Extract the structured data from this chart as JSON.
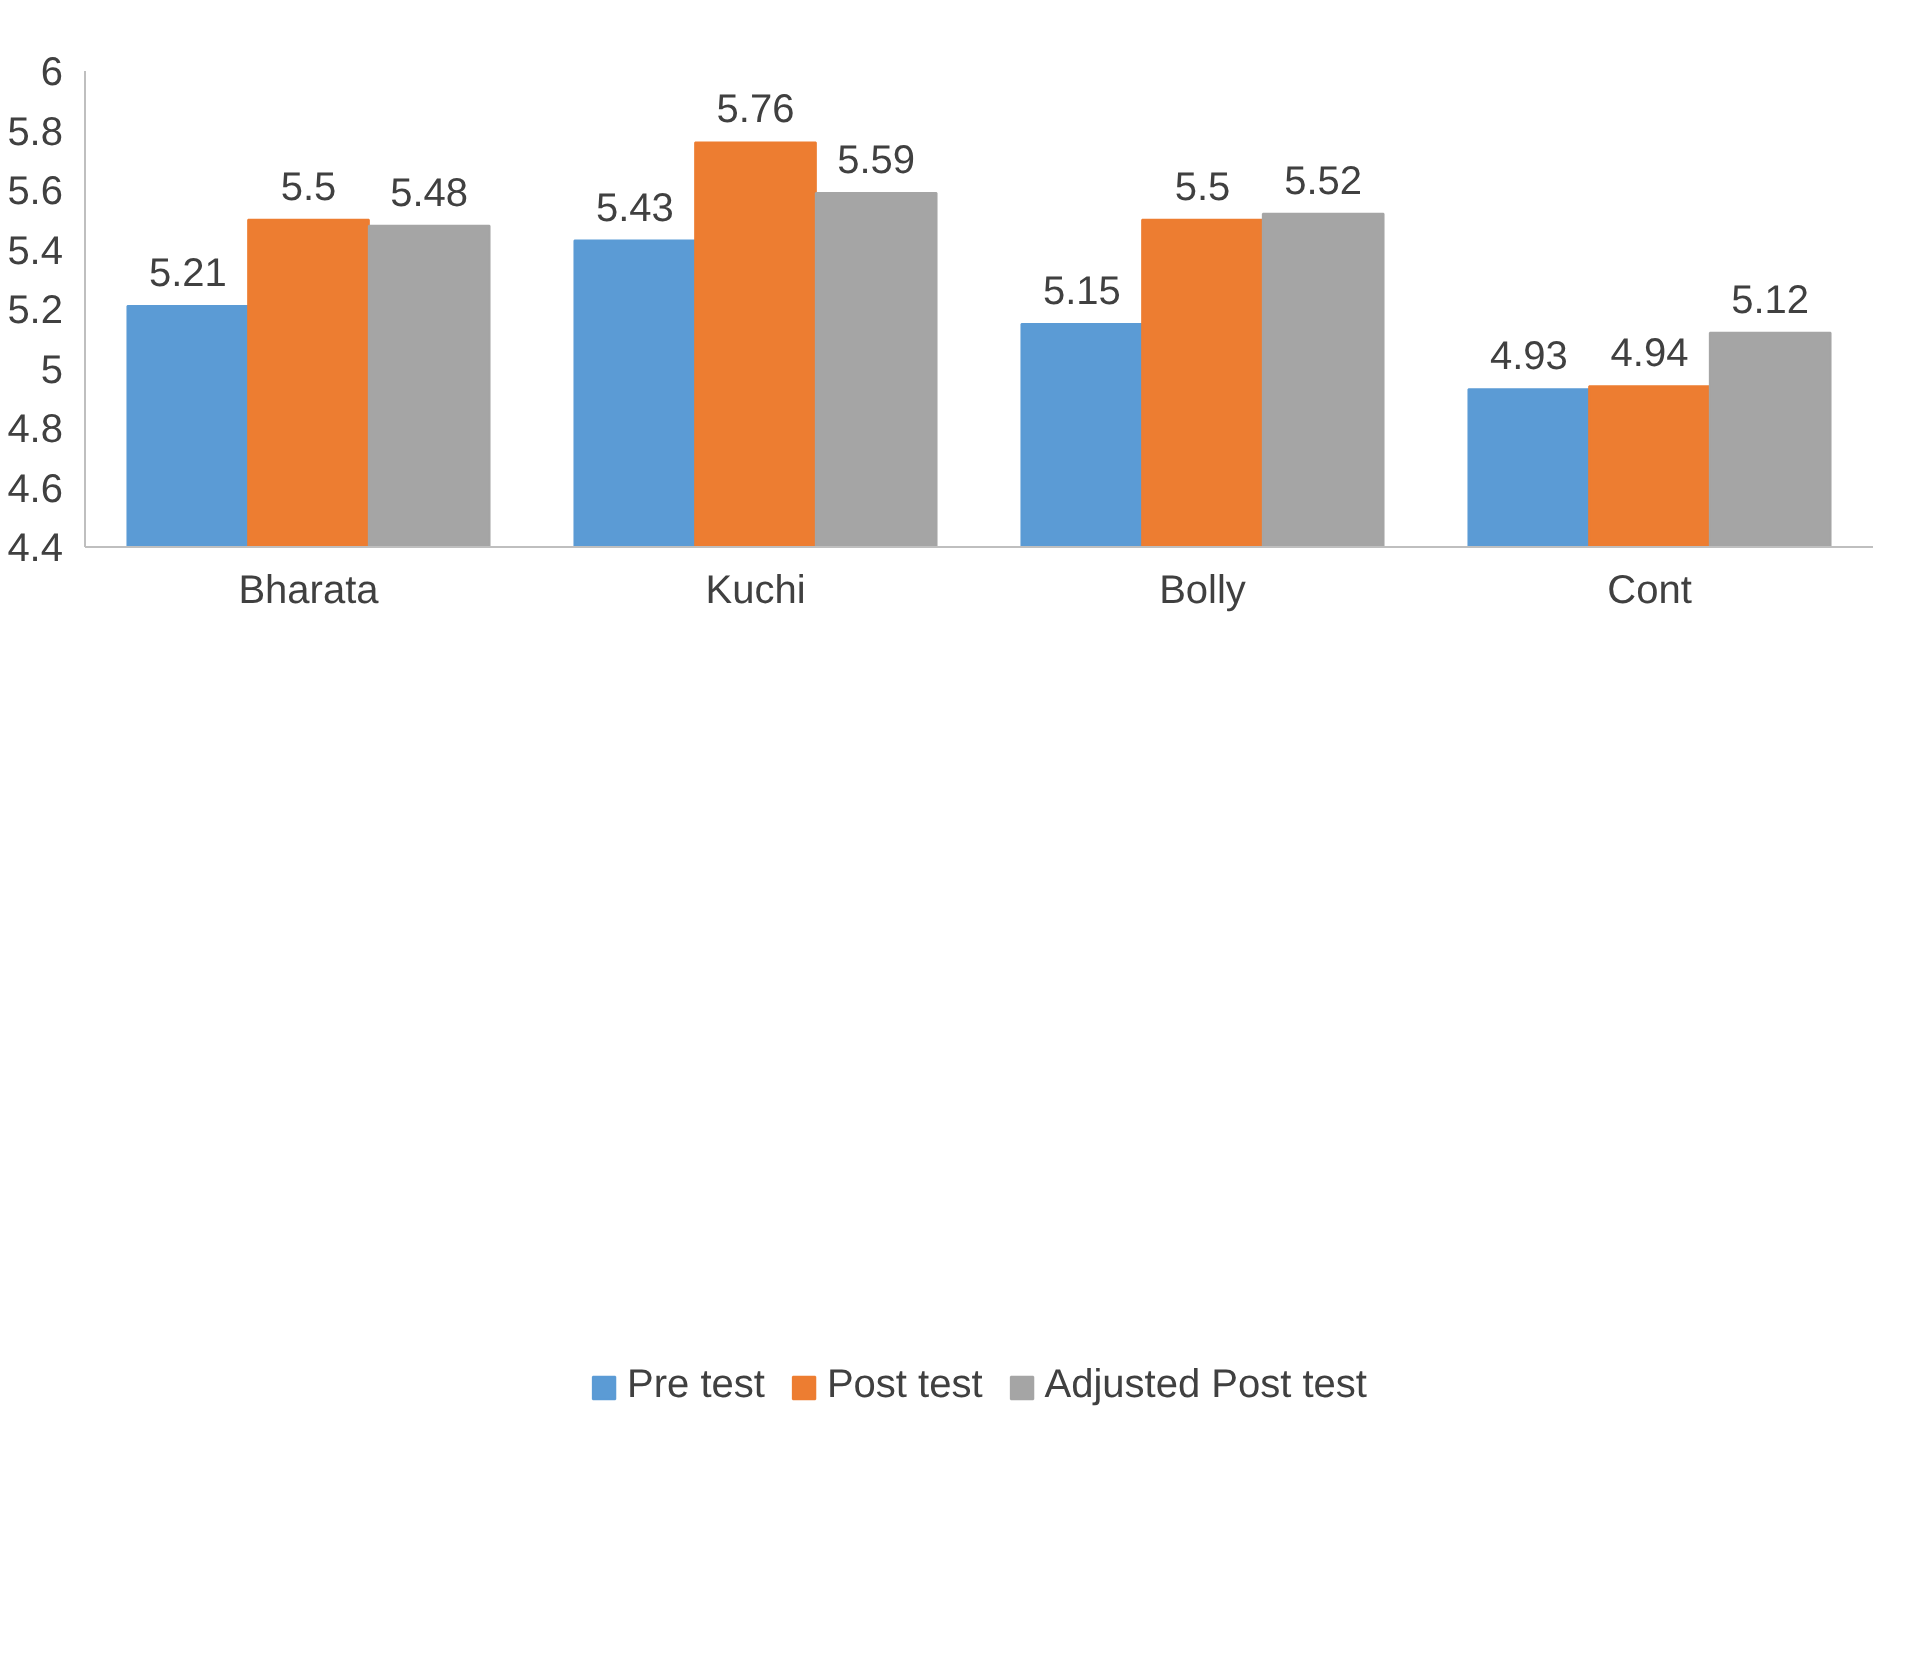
{
  "chart_data": {
    "type": "bar",
    "categories": [
      "Bharata",
      "Kuchi",
      "Bolly",
      "Cont"
    ],
    "series": [
      {
        "name": "Pre test",
        "color": "#5b9bd5",
        "values": [
          5.21,
          5.43,
          5.15,
          4.93
        ]
      },
      {
        "name": "Post test",
        "color": "#ed7d31",
        "values": [
          5.5,
          5.76,
          5.5,
          4.94
        ]
      },
      {
        "name": "Adjusted Post test",
        "color": "#a5a5a5",
        "values": [
          5.48,
          5.59,
          5.52,
          5.12
        ]
      }
    ],
    "ylim": [
      4.4,
      6
    ],
    "yticks": [
      4.4,
      4.6,
      4.8,
      5,
      5.2,
      5.4,
      5.6,
      5.8,
      6
    ],
    "data_labels": true,
    "grid": false,
    "legend": "bottom"
  }
}
